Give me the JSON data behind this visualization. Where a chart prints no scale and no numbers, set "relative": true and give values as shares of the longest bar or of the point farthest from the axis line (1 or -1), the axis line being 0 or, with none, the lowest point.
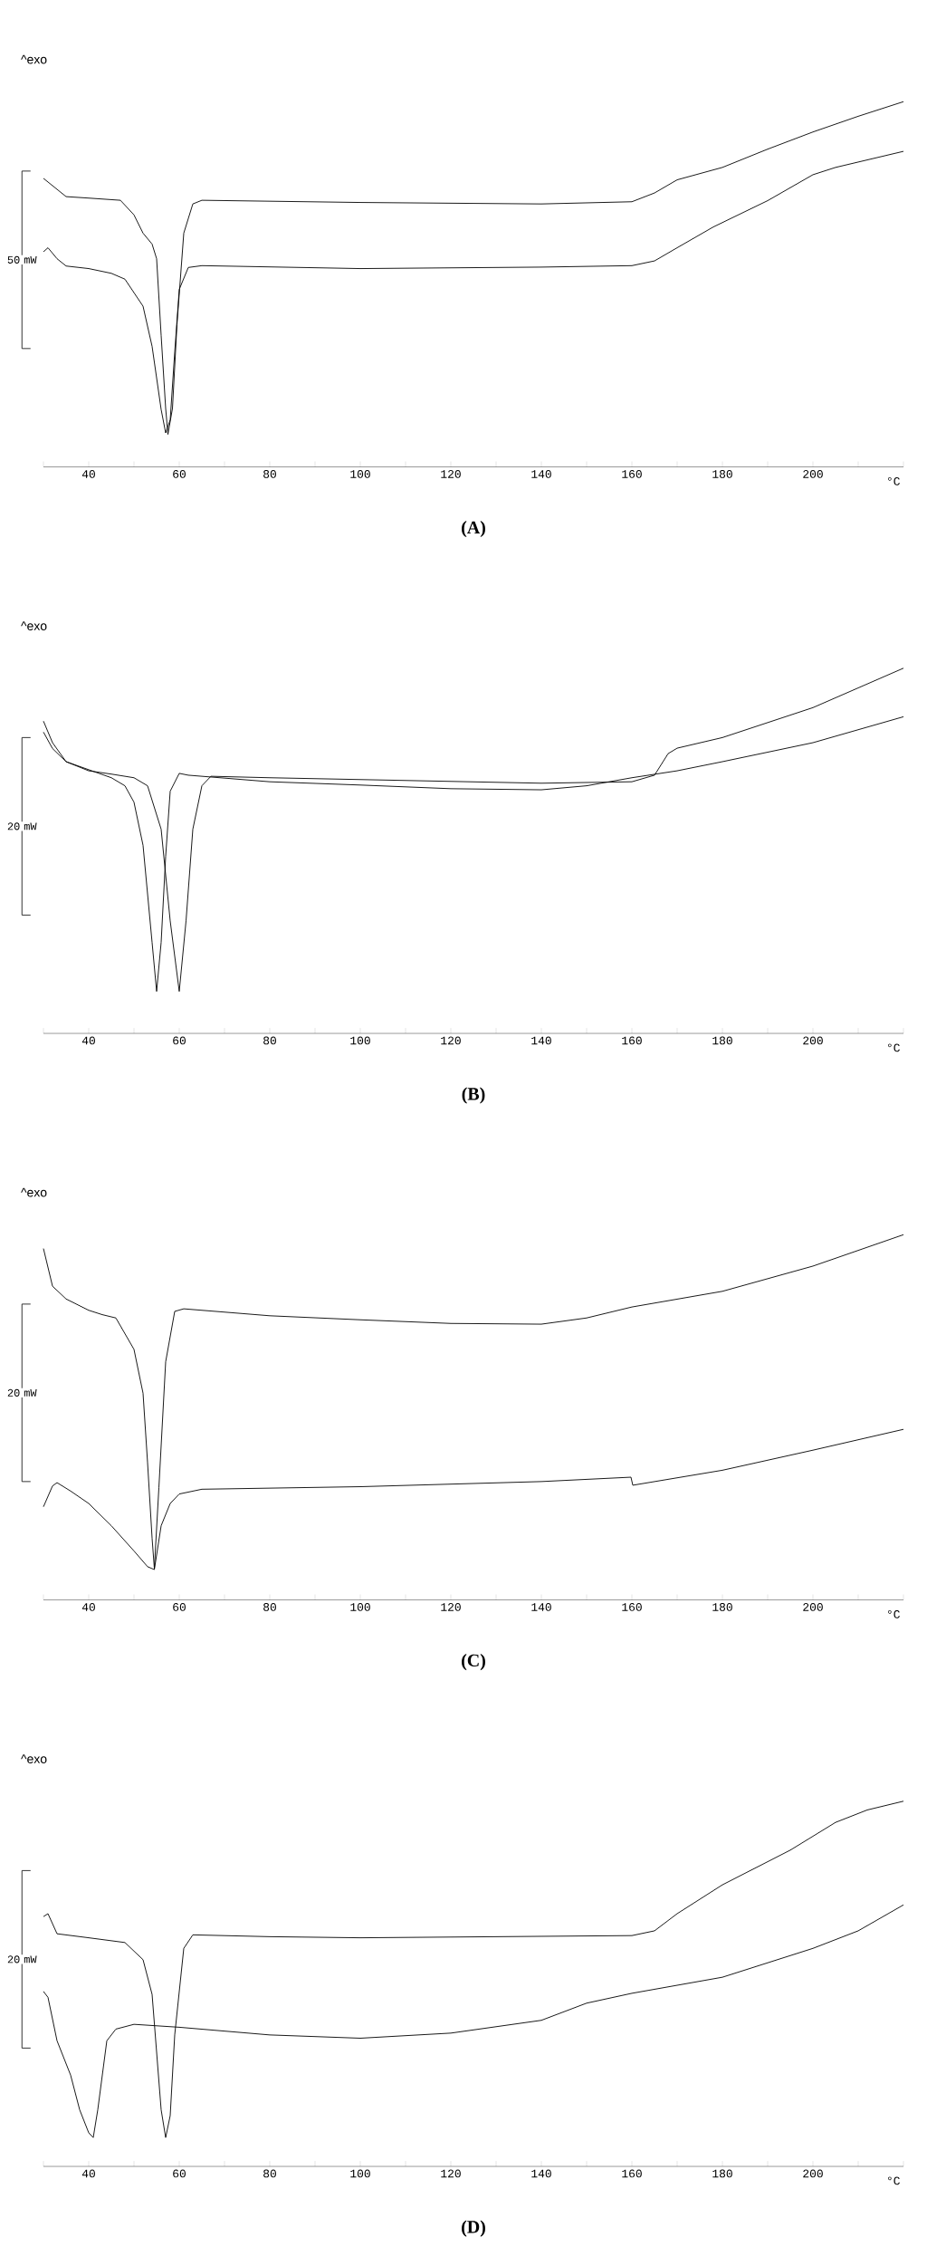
{
  "chart_data": [
    {
      "type": "line",
      "title": "(A)",
      "ylabel": "^exo",
      "xlabel": "°C",
      "annotations": [
        "50 mW"
      ],
      "relative": true,
      "xlim": [
        30,
        220
      ],
      "xticks": [
        {
          "value": 30,
          "label": null
        },
        40,
        {
          "value": 50,
          "label": null
        },
        60,
        {
          "value": 70,
          "label": null
        },
        80,
        {
          "value": 90,
          "label": null
        },
        100,
        {
          "value": 110,
          "label": null
        },
        120,
        {
          "value": 130,
          "label": null
        },
        140,
        {
          "value": 150,
          "label": null
        },
        160,
        {
          "value": 170,
          "label": null
        },
        180,
        {
          "value": 190,
          "label": null
        },
        200,
        {
          "value": 210,
          "label": null
        },
        {
          "value": 220,
          "label": null
        }
      ],
      "series": [
        {
          "color": "#000000",
          "x": [
            30,
            32,
            35,
            40,
            47,
            50,
            52,
            54,
            55,
            56,
            57,
            57.5,
            58.5,
            59.5,
            61,
            63,
            65,
            100,
            140,
            160,
            165,
            170,
            180,
            190,
            200,
            210,
            220
          ],
          "values": [
            0.79,
            0.77,
            0.74,
            0.736,
            0.73,
            0.69,
            0.64,
            0.61,
            0.57,
            0.36,
            0.16,
            0.089,
            0.16,
            0.39,
            0.64,
            0.72,
            0.73,
            0.724,
            0.72,
            0.726,
            0.75,
            0.786,
            0.82,
            0.87,
            0.917,
            0.96,
            1
          ]
        },
        {
          "color": "#000000",
          "x": [
            30,
            31,
            33,
            35,
            40,
            45,
            48,
            52,
            54,
            56,
            57,
            58,
            59,
            60,
            62,
            65,
            100,
            140,
            160,
            165,
            170,
            178,
            190,
            200,
            205,
            220
          ],
          "values": [
            0.589,
            0.6,
            0.57,
            0.55,
            0.543,
            0.53,
            0.514,
            0.44,
            0.33,
            0.157,
            0.093,
            0.129,
            0.314,
            0.486,
            0.546,
            0.551,
            0.543,
            0.547,
            0.551,
            0.564,
            0.6,
            0.657,
            0.729,
            0.8,
            0.82,
            0.864
          ]
        }
      ]
    },
    {
      "type": "line",
      "title": "(B)",
      "ylabel": "^exo",
      "xlabel": "°C",
      "annotations": [
        "20 mW"
      ],
      "relative": true,
      "xlim": [
        30,
        220
      ],
      "xticks": [
        {
          "value": 30,
          "label": null
        },
        40,
        {
          "value": 50,
          "label": null
        },
        60,
        {
          "value": 70,
          "label": null
        },
        80,
        {
          "value": 90,
          "label": null
        },
        100,
        {
          "value": 110,
          "label": null
        },
        120,
        {
          "value": 130,
          "label": null
        },
        140,
        {
          "value": 150,
          "label": null
        },
        160,
        {
          "value": 170,
          "label": null
        },
        180,
        {
          "value": 190,
          "label": null
        },
        200,
        {
          "value": 210,
          "label": null
        },
        {
          "value": 220,
          "label": null
        }
      ],
      "series": [
        {
          "color": "#000000",
          "x": [
            30,
            32,
            35,
            40,
            45,
            48,
            50,
            52,
            54,
            55,
            56,
            57,
            58,
            60,
            62,
            80,
            100,
            120,
            140,
            150,
            160,
            170,
            180,
            200,
            220
          ],
          "values": [
            0.855,
            0.796,
            0.744,
            0.722,
            0.7,
            0.678,
            0.633,
            0.515,
            0.249,
            0.115,
            0.249,
            0.485,
            0.663,
            0.712,
            0.707,
            0.689,
            0.68,
            0.67,
            0.667,
            0.678,
            0.7,
            0.719,
            0.744,
            0.796,
            0.867
          ]
        },
        {
          "color": "#000000",
          "x": [
            30,
            32,
            35,
            40,
            45,
            50,
            53,
            56,
            58,
            60,
            61.5,
            63,
            65,
            67,
            80,
            100,
            140,
            160,
            165,
            168,
            170,
            180,
            200,
            220
          ],
          "values": [
            0.825,
            0.78,
            0.744,
            0.719,
            0.71,
            0.7,
            0.678,
            0.559,
            0.308,
            0.115,
            0.308,
            0.559,
            0.678,
            0.704,
            0.7,
            0.695,
            0.685,
            0.689,
            0.707,
            0.766,
            0.781,
            0.81,
            0.892,
            1
          ]
        }
      ]
    },
    {
      "type": "line",
      "title": "(C)",
      "ylabel": "^exo",
      "xlabel": "°C",
      "annotations": [
        "20 mW"
      ],
      "relative": true,
      "xlim": [
        30,
        220
      ],
      "xticks": [
        {
          "value": 30,
          "label": null
        },
        40,
        {
          "value": 50,
          "label": null
        },
        60,
        {
          "value": 70,
          "label": null
        },
        80,
        {
          "value": 90,
          "label": null
        },
        100,
        {
          "value": 110,
          "label": null
        },
        120,
        {
          "value": 130,
          "label": null
        },
        140,
        {
          "value": 150,
          "label": null
        },
        160,
        {
          "value": 170,
          "label": null
        },
        180,
        {
          "value": 190,
          "label": null
        },
        200,
        {
          "value": 210,
          "label": null
        },
        {
          "value": 220,
          "label": null
        }
      ],
      "series": [
        {
          "color": "#000000",
          "x": [
            30,
            32,
            35,
            40,
            43,
            46,
            50,
            52,
            53,
            54,
            54.5,
            55.5,
            57,
            59,
            61,
            80,
            100,
            120,
            140,
            150,
            160,
            180,
            200,
            220
          ],
          "values": [
            0.962,
            0.859,
            0.824,
            0.793,
            0.781,
            0.772,
            0.686,
            0.566,
            0.376,
            0.169,
            0.086,
            0.307,
            0.652,
            0.79,
            0.797,
            0.778,
            0.767,
            0.757,
            0.755,
            0.772,
            0.802,
            0.845,
            0.914,
            1
          ]
        },
        {
          "color": "#000000",
          "x": [
            30,
            32,
            33,
            36,
            40,
            45,
            50,
            53,
            54.5,
            56,
            58,
            60,
            65,
            100,
            140,
            159.8,
            160.2,
            180,
            200,
            220
          ],
          "values": [
            0.255,
            0.312,
            0.321,
            0.298,
            0.264,
            0.203,
            0.134,
            0.091,
            0.083,
            0.203,
            0.264,
            0.29,
            0.303,
            0.31,
            0.324,
            0.336,
            0.314,
            0.355,
            0.41,
            0.467
          ]
        }
      ]
    },
    {
      "type": "line",
      "title": "(D)",
      "ylabel": "^exo",
      "xlabel": "°C",
      "annotations": [
        "20 mW"
      ],
      "relative": true,
      "xlim": [
        30,
        220
      ],
      "xticks": [
        {
          "value": 30,
          "label": null
        },
        40,
        {
          "value": 50,
          "label": null
        },
        60,
        {
          "value": 70,
          "label": null
        },
        80,
        {
          "value": 90,
          "label": null
        },
        100,
        {
          "value": 110,
          "label": null
        },
        120,
        {
          "value": 130,
          "label": null
        },
        140,
        {
          "value": 150,
          "label": null
        },
        160,
        {
          "value": 170,
          "label": null
        },
        180,
        {
          "value": 190,
          "label": null
        },
        200,
        {
          "value": 210,
          "label": null
        },
        {
          "value": 220,
          "label": null
        }
      ],
      "series": [
        {
          "color": "#000000",
          "x": [
            30,
            31,
            33,
            40,
            48,
            52,
            54,
            55,
            56,
            57,
            58,
            59,
            61,
            63,
            80,
            100,
            160,
            165,
            170,
            180,
            195,
            205,
            212,
            220
          ],
          "values": [
            0.684,
            0.692,
            0.637,
            0.626,
            0.613,
            0.566,
            0.471,
            0.313,
            0.155,
            0.079,
            0.139,
            0.36,
            0.597,
            0.634,
            0.629,
            0.626,
            0.632,
            0.645,
            0.692,
            0.771,
            0.866,
            0.942,
            0.976,
            1
          ]
        },
        {
          "color": "#000000",
          "x": [
            30,
            31,
            33,
            36,
            38,
            40,
            41,
            42,
            44,
            46,
            50,
            60,
            80,
            100,
            120,
            140,
            150,
            160,
            180,
            200,
            210,
            220
          ],
          "values": [
            0.479,
            0.463,
            0.344,
            0.25,
            0.155,
            0.092,
            0.079,
            0.155,
            0.344,
            0.376,
            0.389,
            0.381,
            0.36,
            0.351,
            0.365,
            0.4,
            0.447,
            0.474,
            0.518,
            0.597,
            0.645,
            0.716
          ]
        }
      ]
    }
  ]
}
